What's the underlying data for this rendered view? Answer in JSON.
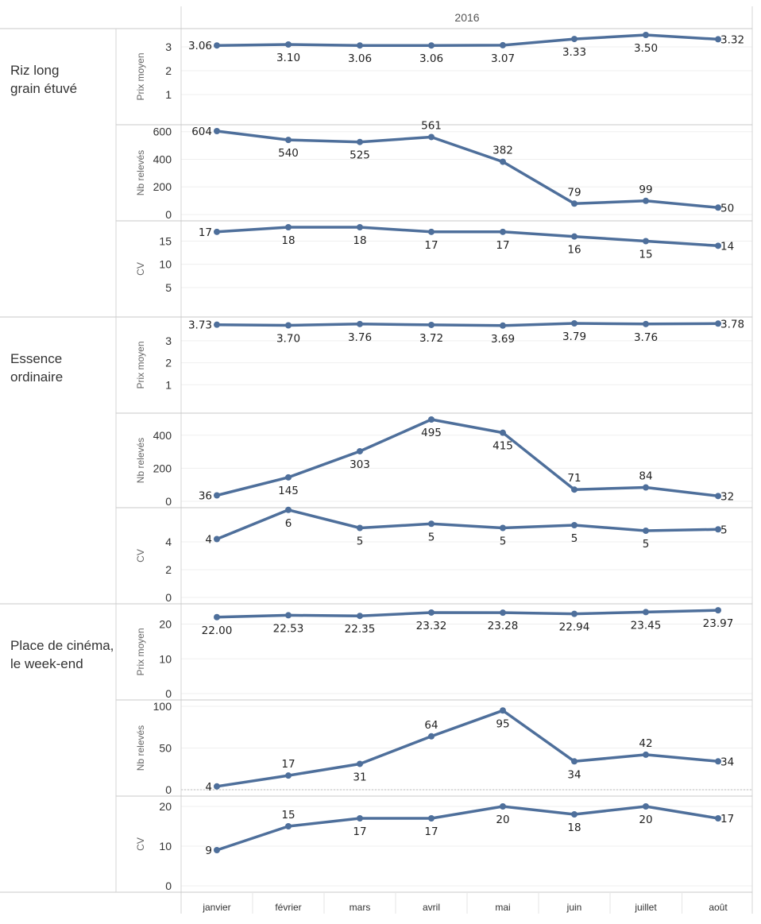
{
  "chart_data": {
    "type": "line",
    "column_header": "2016",
    "categories": [
      "janvier",
      "février",
      "mars",
      "avril",
      "mai",
      "juin",
      "juillet",
      "août"
    ],
    "line_color": "#4e6f9b",
    "groups": [
      {
        "label_lines": [
          "Riz long",
          "grain étuvé"
        ],
        "metrics": [
          {
            "name": "Prix moyen",
            "ticks": [
              1,
              2,
              3
            ],
            "ylim": [
              0,
              3.5
            ],
            "values": [
              3.06,
              3.1,
              3.06,
              3.06,
              3.07,
              3.33,
              3.5,
              3.32
            ],
            "labels": [
              "3.06",
              "3.10",
              "3.06",
              "3.06",
              "3.07",
              "3.33",
              "3.50",
              "3.32"
            ]
          },
          {
            "name": "Nb relevés",
            "ticks": [
              0,
              200,
              400,
              600
            ],
            "ylim": [
              0,
              604
            ],
            "values": [
              604,
              540,
              525,
              561,
              382,
              79,
              99,
              50
            ],
            "labels": [
              "604",
              "540",
              "525",
              "561",
              "382",
              "79",
              "99",
              "50"
            ]
          },
          {
            "name": "CV",
            "ticks": [
              5,
              10,
              15
            ],
            "ylim": [
              0,
              18
            ],
            "values": [
              17,
              18,
              18,
              17,
              17,
              16,
              15,
              14
            ],
            "labels": [
              "17",
              "18",
              "18",
              "17",
              "17",
              "16",
              "15",
              "14"
            ]
          }
        ]
      },
      {
        "label_lines": [
          "Essence",
          "ordinaire"
        ],
        "metrics": [
          {
            "name": "Prix moyen",
            "ticks": [
              1,
              2,
              3
            ],
            "ylim": [
              0,
              3.79
            ],
            "values": [
              3.73,
              3.7,
              3.76,
              3.72,
              3.69,
              3.79,
              3.76,
              3.78
            ],
            "labels": [
              "3.73",
              "3.70",
              "3.76",
              "3.72",
              "3.69",
              "3.79",
              "3.76",
              "3.78"
            ]
          },
          {
            "name": "Nb relevés",
            "ticks": [
              0,
              200,
              400
            ],
            "ylim": [
              0,
              495
            ],
            "values": [
              36,
              145,
              303,
              495,
              415,
              71,
              84,
              32
            ],
            "labels": [
              "36",
              "145",
              "303",
              "495",
              "415",
              "71",
              "84",
              "32"
            ]
          },
          {
            "name": "CV",
            "ticks": [
              0,
              2,
              4
            ],
            "ylim": [
              0,
              6
            ],
            "values": [
              4.2,
              6.3,
              5.0,
              5.3,
              5.0,
              5.2,
              4.8,
              4.9
            ],
            "labels": [
              "4",
              "6",
              "5",
              "5",
              "5",
              "5",
              "5",
              "5"
            ]
          }
        ]
      },
      {
        "label_lines": [
          "Place de cinéma,",
          "le week-end"
        ],
        "metrics": [
          {
            "name": "Prix moyen",
            "ticks": [
              0,
              10,
              20
            ],
            "ylim": [
              0,
              24
            ],
            "values": [
              22.0,
              22.53,
              22.35,
              23.32,
              23.28,
              22.94,
              23.45,
              23.97
            ],
            "labels": [
              "22.00",
              "22.53",
              "22.35",
              "23.32",
              "23.28",
              "22.94",
              "23.45",
              "23.97"
            ]
          },
          {
            "name": "Nb relevés",
            "ticks": [
              0,
              50,
              100
            ],
            "ylim": [
              0,
              100
            ],
            "values": [
              4,
              17,
              31,
              64,
              95,
              34,
              42,
              34
            ],
            "labels": [
              "4",
              "17",
              "31",
              "64",
              "95",
              "34",
              "42",
              "34"
            ]
          },
          {
            "name": "CV",
            "ticks": [
              0,
              10,
              20
            ],
            "ylim": [
              0,
              21
            ],
            "values": [
              9,
              15,
              17,
              17,
              20,
              18,
              20,
              17
            ],
            "labels": [
              "9",
              "15",
              "17",
              "17",
              "20",
              "18",
              "20",
              "17"
            ]
          }
        ]
      }
    ]
  }
}
